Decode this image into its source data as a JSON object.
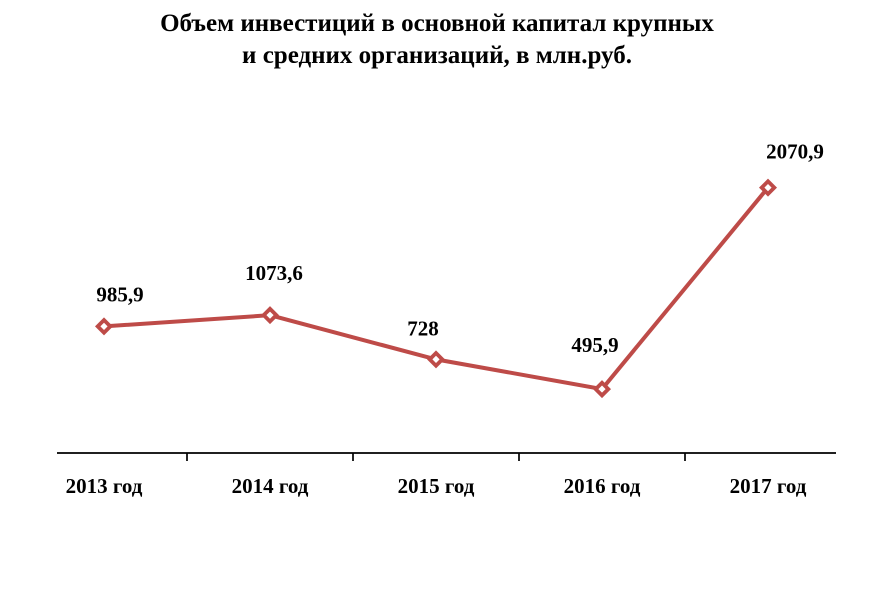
{
  "chart_data": {
    "type": "line",
    "title": "Объем инвестиций в основной капитал крупных и средних организаций, в млн.руб.",
    "title_lines": [
      "Объем инвестиций в основной капитал крупных",
      "и средних организаций, в млн.руб."
    ],
    "categories": [
      "2013 год",
      "2014 год",
      "2015 год",
      "2016 год",
      "2017 год"
    ],
    "values": [
      985.9,
      1073.6,
      728,
      495.9,
      2070.9
    ],
    "point_labels": [
      "985,9",
      "1073,6",
      "728",
      "495,9",
      "2070,9"
    ],
    "xlabel": "",
    "ylabel": "",
    "ylim": [
      0,
      2500
    ],
    "grid": false,
    "legend": "none",
    "colors": {
      "line": "#BE4B48",
      "marker_fill": "#BE4B48",
      "marker_hole": "#FFFFFF",
      "axis": "#000000",
      "text": "#000000",
      "background": "#FFFFFF"
    },
    "marker": "diamond"
  }
}
